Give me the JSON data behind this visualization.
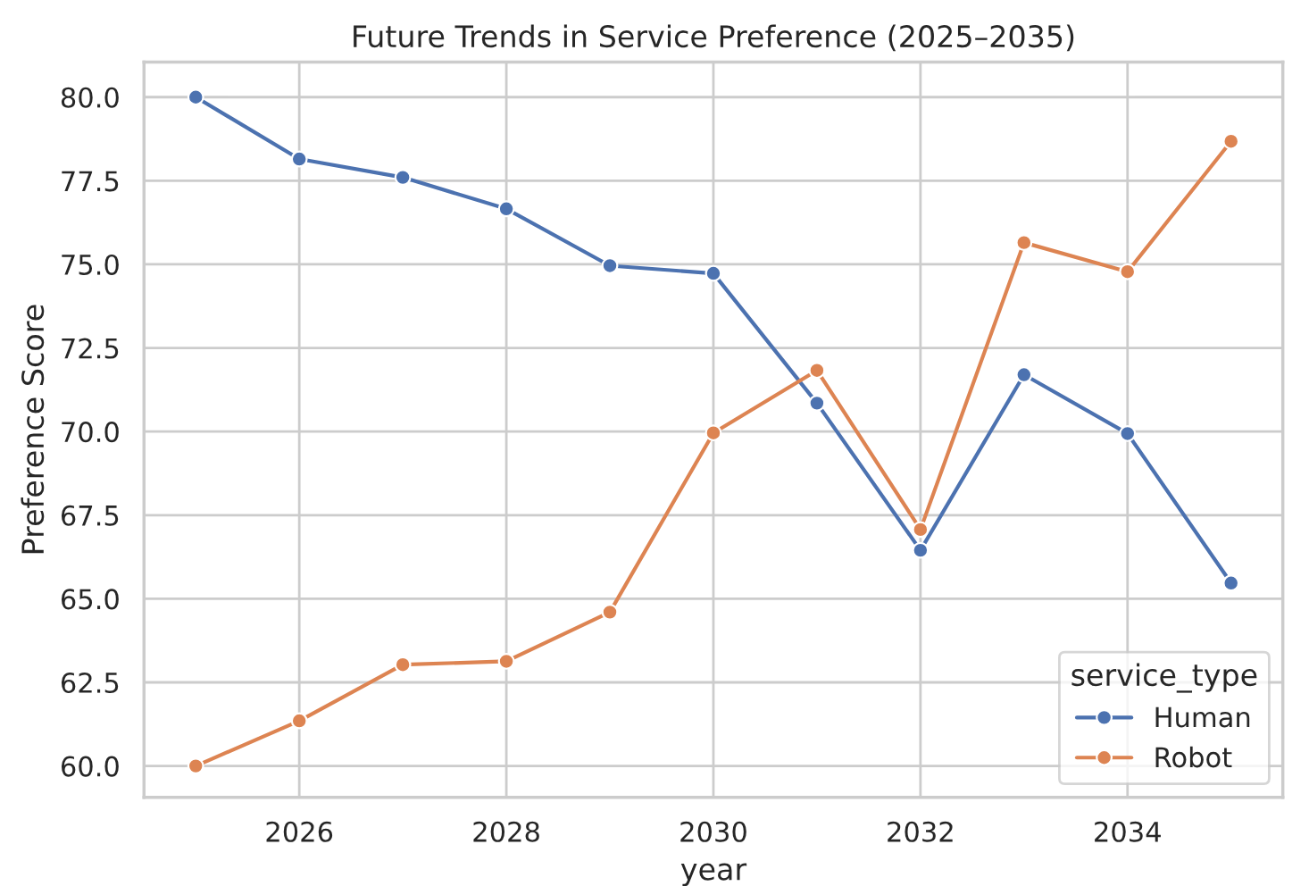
{
  "chart_data": {
    "type": "line",
    "title": "Future Trends in Service Preference (2025–2035)",
    "xlabel": "year",
    "ylabel": "Preference Score",
    "legend_title": "service_type",
    "x": [
      2025,
      2026,
      2027,
      2028,
      2029,
      2030,
      2031,
      2032,
      2033,
      2034,
      2035
    ],
    "series": [
      {
        "name": "Human",
        "color": "#4c72b0",
        "values": [
          80.0,
          78.15,
          77.6,
          76.66,
          74.96,
          74.73,
          70.85,
          66.45,
          71.7,
          69.94,
          65.47
        ]
      },
      {
        "name": "Robot",
        "color": "#dd8452",
        "values": [
          60.0,
          61.35,
          63.03,
          63.13,
          64.6,
          69.96,
          71.83,
          67.07,
          75.65,
          74.78,
          78.68
        ]
      }
    ],
    "xlim": [
      2024.5,
      2035.5
    ],
    "xticks": [
      2026,
      2028,
      2030,
      2032,
      2034
    ],
    "ylim": [
      59.06,
      81.05
    ],
    "yticks": [
      {
        "value": 60,
        "label": "60.0"
      },
      {
        "value": 62.5,
        "label": "62.5"
      },
      {
        "value": 65,
        "label": "65.0"
      },
      {
        "value": 67.5,
        "label": "67.5"
      },
      {
        "value": 70,
        "label": "70.0"
      },
      {
        "value": 72.5,
        "label": "72.5"
      },
      {
        "value": 75,
        "label": "75.0"
      },
      {
        "value": 77.5,
        "label": "77.5"
      },
      {
        "value": 80,
        "label": "80.0"
      }
    ],
    "grid": true,
    "legend": "lower right",
    "marker": "circle",
    "line_style": "solid"
  }
}
